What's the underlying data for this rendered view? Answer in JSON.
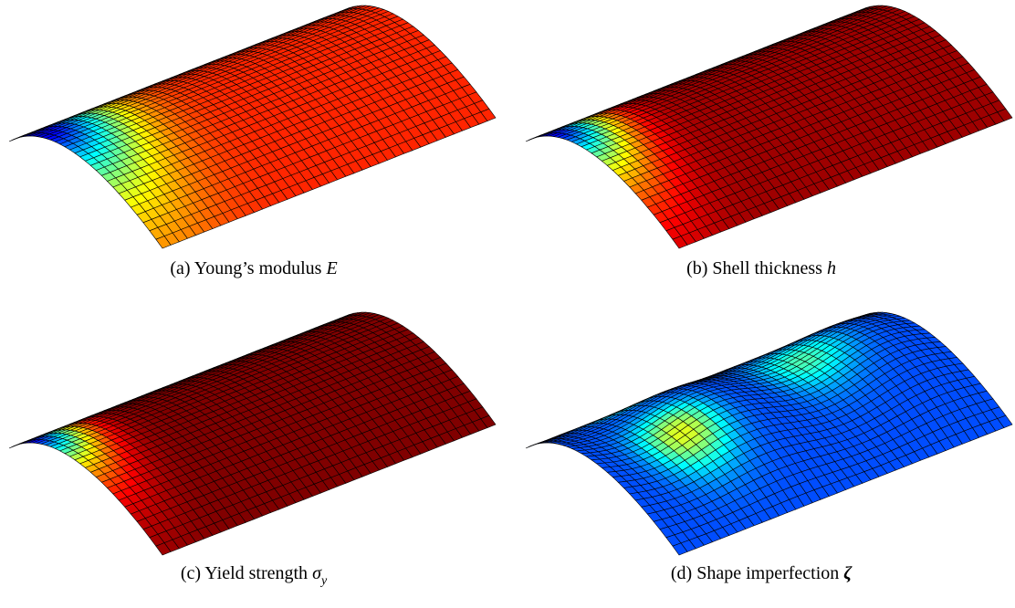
{
  "panels": [
    {
      "label": "(a)",
      "caption": "Young’s modulus",
      "symbol": "E"
    },
    {
      "label": "(b)",
      "caption": "Shell thickness",
      "symbol": "h"
    },
    {
      "label": "(c)",
      "caption": "Yield strength",
      "symbol": "σ",
      "subscript": "y"
    },
    {
      "label": "(d)",
      "caption": "Shape imperfection",
      "symbol": "ζ"
    }
  ]
}
